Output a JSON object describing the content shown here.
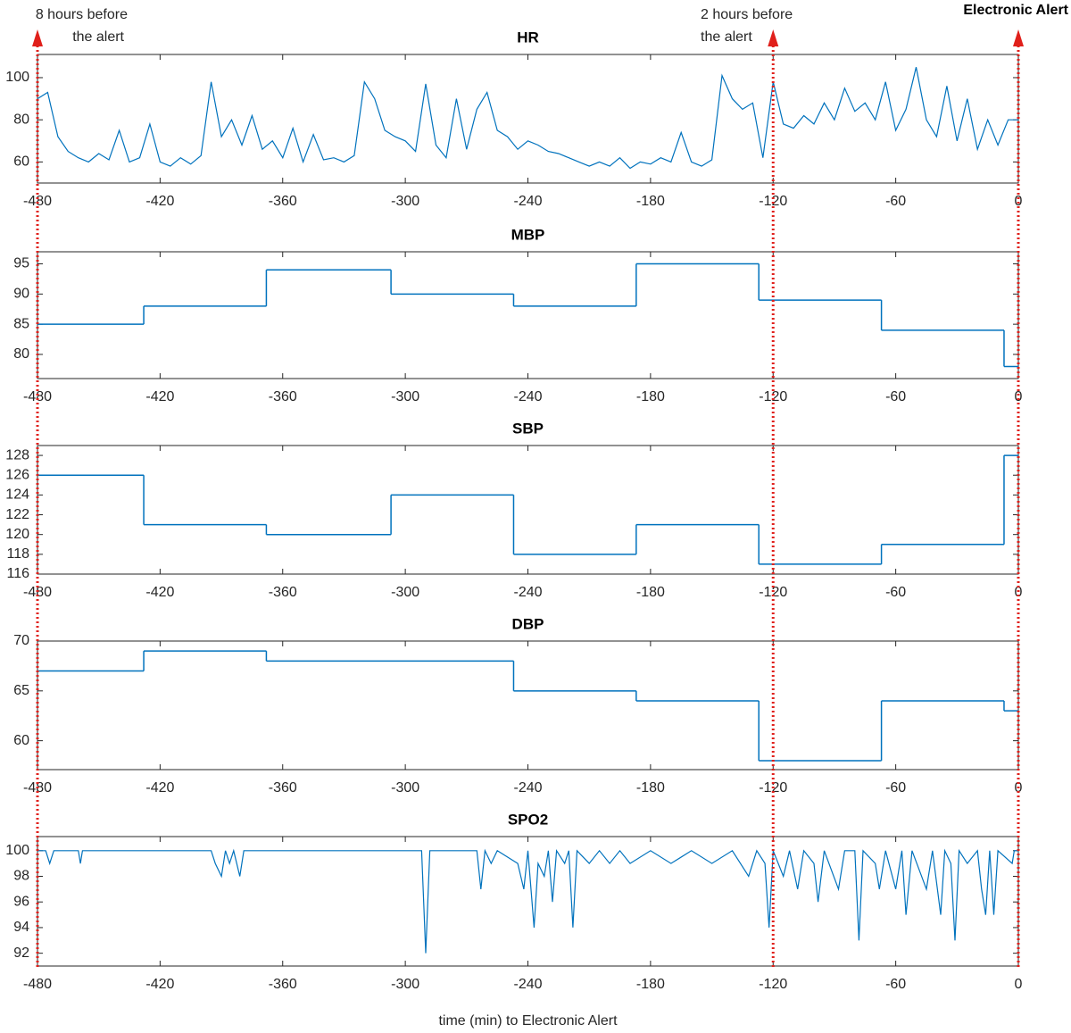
{
  "chart_data": [
    {
      "type": "line",
      "title": "HR",
      "color": "#0072bd",
      "xlim": [
        -480,
        0
      ],
      "xticks": [
        -480,
        -420,
        -360,
        -300,
        -240,
        -180,
        -120,
        -60,
        0
      ],
      "ylim": [
        50,
        111
      ],
      "yticks": [
        60,
        80,
        100
      ],
      "x": [
        -480,
        -475,
        -470,
        -465,
        -460,
        -455,
        -450,
        -445,
        -440,
        -435,
        -430,
        -425,
        -420,
        -415,
        -410,
        -405,
        -400,
        -395,
        -390,
        -385,
        -380,
        -375,
        -370,
        -365,
        -360,
        -355,
        -350,
        -345,
        -340,
        -335,
        -330,
        -325,
        -320,
        -315,
        -310,
        -305,
        -300,
        -295,
        -290,
        -285,
        -280,
        -275,
        -270,
        -265,
        -260,
        -255,
        -250,
        -245,
        -240,
        -235,
        -230,
        -225,
        -220,
        -215,
        -210,
        -205,
        -200,
        -195,
        -190,
        -185,
        -180,
        -175,
        -170,
        -165,
        -160,
        -155,
        -150,
        -145,
        -140,
        -135,
        -130,
        -125,
        -120,
        -115,
        -110,
        -105,
        -100,
        -95,
        -90,
        -85,
        -80,
        -75,
        -70,
        -65,
        -60,
        -55,
        -50,
        -45,
        -40,
        -35,
        -30,
        -25,
        -20,
        -15,
        -10,
        -5,
        0
      ],
      "values": [
        90,
        93,
        72,
        65,
        62,
        60,
        64,
        61,
        75,
        60,
        62,
        78,
        60,
        58,
        62,
        59,
        63,
        98,
        72,
        80,
        68,
        82,
        66,
        70,
        62,
        76,
        60,
        73,
        61,
        62,
        60,
        63,
        98,
        90,
        75,
        72,
        70,
        65,
        97,
        68,
        62,
        90,
        66,
        85,
        93,
        75,
        72,
        66,
        70,
        68,
        65,
        64,
        62,
        60,
        58,
        60,
        58,
        62,
        57,
        60,
        59,
        62,
        60,
        74,
        60,
        58,
        61,
        101,
        90,
        85,
        88,
        62,
        98,
        78,
        76,
        82,
        78,
        88,
        80,
        95,
        84,
        88,
        80,
        98,
        75,
        85,
        105,
        80,
        72,
        96,
        70,
        90,
        66,
        80,
        68,
        80,
        80
      ]
    },
    {
      "type": "line",
      "drawstyle": "steps-post",
      "title": "MBP",
      "color": "#0072bd",
      "xlim": [
        -480,
        0
      ],
      "xticks": [
        -480,
        -420,
        -360,
        -300,
        -240,
        -180,
        -120,
        -60,
        0
      ],
      "ylim": [
        76,
        97
      ],
      "yticks": [
        80,
        85,
        90,
        95
      ],
      "x": [
        -480,
        -428,
        -368,
        -307,
        -247,
        -187,
        -127,
        -67,
        -7,
        0
      ],
      "values": [
        85,
        88,
        94,
        90,
        88,
        95,
        89,
        84,
        78,
        78
      ]
    },
    {
      "type": "line",
      "drawstyle": "steps-post",
      "title": "SBP",
      "color": "#0072bd",
      "xlim": [
        -480,
        0
      ],
      "xticks": [
        -480,
        -420,
        -360,
        -300,
        -240,
        -180,
        -120,
        -60,
        0
      ],
      "ylim": [
        116,
        129
      ],
      "yticks": [
        116,
        118,
        120,
        122,
        124,
        126,
        128
      ],
      "x": [
        -480,
        -428,
        -368,
        -307,
        -247,
        -187,
        -127,
        -67,
        -7,
        0
      ],
      "values": [
        126,
        121,
        120,
        124,
        118,
        121,
        117,
        119,
        128,
        128
      ]
    },
    {
      "type": "line",
      "drawstyle": "steps-post",
      "title": "DBP",
      "color": "#0072bd",
      "xlim": [
        -480,
        0
      ],
      "xticks": [
        -480,
        -420,
        -360,
        -300,
        -240,
        -180,
        -120,
        -60,
        0
      ],
      "ylim": [
        57.1,
        70
      ],
      "yticks": [
        60,
        65,
        70
      ],
      "x": [
        -480,
        -428,
        -368,
        -247,
        -187,
        -127,
        -67,
        -7,
        0
      ],
      "values": [
        67,
        69,
        68,
        65,
        64,
        58,
        64,
        63,
        63
      ]
    },
    {
      "type": "line",
      "title": "SPO2",
      "xlabel": "time (min) to Electronic Alert",
      "color": "#0072bd",
      "xlim": [
        -480,
        0
      ],
      "xticks": [
        -480,
        -420,
        -360,
        -300,
        -240,
        -180,
        -120,
        -60,
        0
      ],
      "ylim": [
        91,
        101.1
      ],
      "yticks": [
        92,
        94,
        96,
        98,
        100
      ],
      "x": [
        -480,
        -476,
        -474,
        -472,
        -460,
        -459,
        -458,
        -395,
        -393,
        -390,
        -388,
        -386,
        -384,
        -381,
        -379,
        -292,
        -290,
        -288,
        -265,
        -263,
        -261,
        -258,
        -255,
        -245,
        -242,
        -240,
        -237,
        -235,
        -232,
        -230,
        -228,
        -226,
        -222,
        -220,
        -218,
        -216,
        -210,
        -205,
        -200,
        -195,
        -190,
        -180,
        -170,
        -160,
        -150,
        -140,
        -132,
        -128,
        -124,
        -122,
        -120,
        -115,
        -112,
        -108,
        -105,
        -100,
        -98,
        -95,
        -88,
        -85,
        -80,
        -78,
        -76,
        -70,
        -68,
        -65,
        -60,
        -57,
        -55,
        -52,
        -45,
        -42,
        -38,
        -36,
        -33,
        -31,
        -29,
        -25,
        -20,
        -18,
        -16,
        -14,
        -12,
        -10,
        -3,
        -2,
        0
      ],
      "values": [
        100,
        100,
        99,
        100,
        100,
        99,
        100,
        100,
        99,
        98,
        100,
        99,
        100,
        98,
        100,
        100,
        92,
        100,
        100,
        97,
        100,
        99,
        100,
        99,
        97,
        100,
        94,
        99,
        98,
        100,
        96,
        100,
        99,
        100,
        94,
        100,
        99,
        100,
        99,
        100,
        99,
        100,
        99,
        100,
        99,
        100,
        98,
        100,
        99,
        94,
        100,
        98,
        100,
        97,
        100,
        99,
        96,
        100,
        97,
        100,
        100,
        93,
        100,
        99,
        97,
        100,
        97,
        100,
        95,
        100,
        97,
        100,
        95,
        100,
        99,
        93,
        100,
        99,
        100,
        97,
        95,
        100,
        95,
        100,
        99,
        100,
        100
      ]
    }
  ],
  "annotations": [
    {
      "x": -480,
      "lines": [
        "8 hours before",
        "the alert"
      ]
    },
    {
      "x": -120,
      "lines": [
        "2 hours before",
        "the alert"
      ]
    },
    {
      "x": 0,
      "lines": [
        "Electronic Alert"
      ]
    }
  ]
}
